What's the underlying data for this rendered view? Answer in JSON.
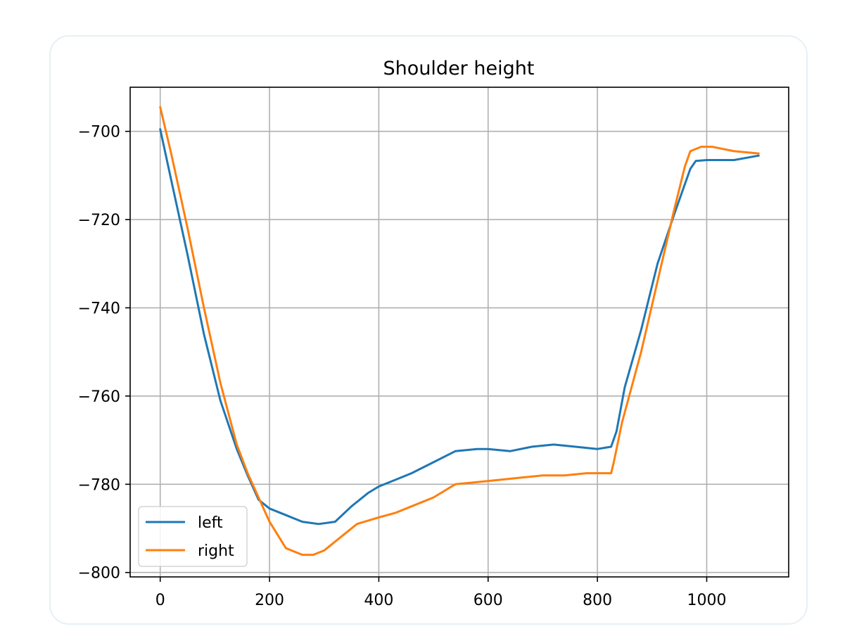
{
  "chart_data": {
    "type": "line",
    "title": "Shoulder height",
    "xlabel": "",
    "ylabel": "",
    "xlim": [
      -55,
      1150
    ],
    "ylim": [
      -801,
      -690
    ],
    "xticks": [
      0,
      200,
      400,
      600,
      800,
      1000
    ],
    "yticks": [
      -700,
      -720,
      -740,
      -760,
      -780,
      -800
    ],
    "xtick_labels": [
      "0",
      "200",
      "400",
      "600",
      "800",
      "1000"
    ],
    "ytick_labels": [
      "−700",
      "−720",
      "−740",
      "−760",
      "−780",
      "−800"
    ],
    "grid": true,
    "legend_position": "lower-left",
    "series": [
      {
        "name": "left",
        "color": "#1f77b4",
        "x": [
          0,
          20,
          50,
          80,
          110,
          140,
          160,
          180,
          200,
          230,
          260,
          290,
          320,
          350,
          380,
          400,
          430,
          460,
          500,
          540,
          580,
          600,
          640,
          680,
          720,
          760,
          800,
          825,
          835,
          850,
          880,
          910,
          940,
          960,
          970,
          980,
          1000,
          1050,
          1095
        ],
        "y": [
          -699.5,
          -711,
          -728,
          -746,
          -761,
          -772,
          -778,
          -783.5,
          -785.5,
          -787,
          -788.5,
          -789,
          -788.5,
          -785,
          -782,
          -780.5,
          -779,
          -777.5,
          -775,
          -772.5,
          -772,
          -772,
          -772.5,
          -771.5,
          -771,
          -771.5,
          -772,
          -771.5,
          -768,
          -758,
          -745,
          -730,
          -719,
          -712,
          -708.5,
          -706.7,
          -706.5,
          -706.5,
          -705.5
        ]
      },
      {
        "name": "right",
        "color": "#ff7f0e",
        "x": [
          0,
          20,
          50,
          80,
          110,
          140,
          160,
          180,
          200,
          230,
          260,
          280,
          300,
          330,
          360,
          400,
          430,
          460,
          500,
          540,
          580,
          620,
          660,
          700,
          740,
          780,
          810,
          825,
          830,
          845,
          880,
          910,
          940,
          960,
          970,
          990,
          1010,
          1050,
          1095
        ],
        "y": [
          -694.5,
          -705,
          -722,
          -740,
          -757,
          -771,
          -777.5,
          -783,
          -788.5,
          -794.5,
          -796,
          -796,
          -795,
          -792,
          -789,
          -787.5,
          -786.5,
          -785,
          -783,
          -780,
          -779.5,
          -779,
          -778.5,
          -778,
          -778,
          -777.5,
          -777.5,
          -777.5,
          -775,
          -766,
          -750,
          -734,
          -718,
          -708,
          -704.5,
          -703.5,
          -703.5,
          -704.5,
          -705
        ]
      }
    ]
  }
}
